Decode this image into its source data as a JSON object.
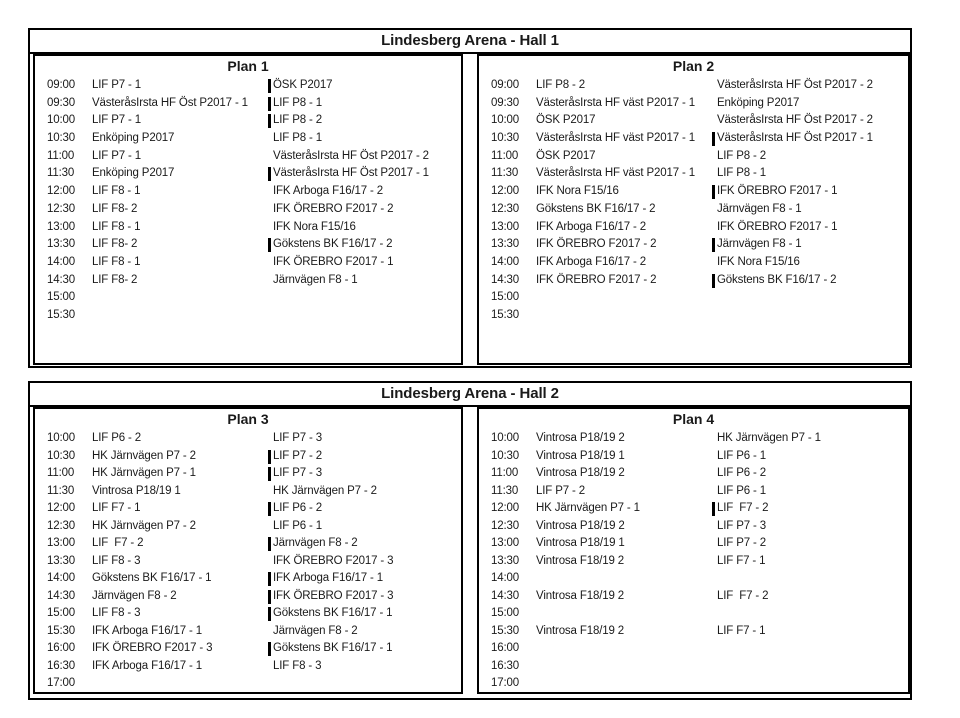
{
  "halls": [
    {
      "title": "Lindesberg Arena - Hall 1",
      "plans": [
        {
          "name": "Plan 1",
          "rows": [
            {
              "time": "09:00",
              "team1": "LIF P7 - 1",
              "team2": "ÖSK P2017",
              "bar": true
            },
            {
              "time": "09:30",
              "team1": "VästeråsIrsta HF Öst P2017 - 1",
              "team2": "LIF P8 - 1",
              "bar": true
            },
            {
              "time": "10:00",
              "team1": "LIF P7 - 1",
              "team2": "LIF P8 - 2",
              "bar": true
            },
            {
              "time": "10:30",
              "team1": "Enköping P2017",
              "team2": "LIF P8 - 1",
              "bar": false
            },
            {
              "time": "11:00",
              "team1": "LIF P7 - 1",
              "team2": "VästeråsIrsta HF Öst P2017 - 2",
              "bar": false
            },
            {
              "time": "11:30",
              "team1": "Enköping P2017",
              "team2": "VästeråsIrsta HF Öst P2017 - 1",
              "bar": true
            },
            {
              "time": "12:00",
              "team1": "LIF F8 - 1",
              "team2": "IFK Arboga F16/17 - 2",
              "bar": false
            },
            {
              "time": "12:30",
              "team1": "LIF F8- 2",
              "team2": "IFK ÖREBRO F2017 - 2",
              "bar": false
            },
            {
              "time": "13:00",
              "team1": "LIF F8 - 1",
              "team2": "IFK Nora F15/16",
              "bar": false
            },
            {
              "time": "13:30",
              "team1": "LIF F8- 2",
              "team2": "Gökstens BK F16/17 - 2",
              "bar": true
            },
            {
              "time": "14:00",
              "team1": "LIF F8 - 1",
              "team2": "IFK ÖREBRO F2017 - 1",
              "bar": false
            },
            {
              "time": "14:30",
              "team1": "LIF F8- 2",
              "team2": "Järnvägen F8 - 1",
              "bar": false
            },
            {
              "time": "15:00",
              "team1": "",
              "team2": "",
              "bar": false
            },
            {
              "time": "15:30",
              "team1": "",
              "team2": "",
              "bar": false
            }
          ]
        },
        {
          "name": "Plan 2",
          "rows": [
            {
              "time": "09:00",
              "team1": "LIF P8 - 2",
              "team2": "VästeråsIrsta HF Öst P2017 - 2",
              "bar": false
            },
            {
              "time": "09:30",
              "team1": "VästeråsIrsta HF väst P2017 - 1",
              "team2": "Enköping P2017",
              "bar": false
            },
            {
              "time": "10:00",
              "team1": "ÖSK P2017",
              "team2": "VästeråsIrsta HF Öst P2017 - 2",
              "bar": false
            },
            {
              "time": "10:30",
              "team1": "VästeråsIrsta HF väst P2017 - 1",
              "team2": "VästeråsIrsta HF Öst P2017 - 1",
              "bar": true
            },
            {
              "time": "11:00",
              "team1": "ÖSK P2017",
              "team2": "LIF P8 - 2",
              "bar": false
            },
            {
              "time": "11:30",
              "team1": "VästeråsIrsta HF väst P2017 - 1",
              "team2": "LIF P8 - 1",
              "bar": false
            },
            {
              "time": "12:00",
              "team1": "IFK Nora F15/16",
              "team2": "IFK ÖREBRO F2017 - 1",
              "bar": true
            },
            {
              "time": "12:30",
              "team1": "Gökstens BK F16/17 - 2",
              "team2": "Järnvägen F8 - 1",
              "bar": false
            },
            {
              "time": "13:00",
              "team1": "IFK Arboga F16/17 - 2",
              "team2": "IFK ÖREBRO F2017 - 1",
              "bar": false
            },
            {
              "time": "13:30",
              "team1": "IFK ÖREBRO F2017 - 2",
              "team2": "Järnvägen F8 - 1",
              "bar": true
            },
            {
              "time": "14:00",
              "team1": "IFK Arboga F16/17 - 2",
              "team2": "IFK Nora F15/16",
              "bar": false
            },
            {
              "time": "14:30",
              "team1": "IFK ÖREBRO F2017 - 2",
              "team2": "Gökstens BK F16/17 - 2",
              "bar": true
            },
            {
              "time": "15:00",
              "team1": "",
              "team2": "",
              "bar": false
            },
            {
              "time": "15:30",
              "team1": "",
              "team2": "",
              "bar": false
            }
          ]
        }
      ]
    },
    {
      "title": "Lindesberg Arena - Hall 2",
      "plans": [
        {
          "name": "Plan 3",
          "rows": [
            {
              "time": "10:00",
              "team1": "LIF P6 - 2",
              "team2": "LIF P7 - 3",
              "bar": false
            },
            {
              "time": "10:30",
              "team1": "HK Järnvägen P7 - 2",
              "team2": "LIF P7 - 2",
              "bar": true
            },
            {
              "time": "11:00",
              "team1": "HK Järnvägen P7 - 1",
              "team2": "LIF P7 - 3",
              "bar": true
            },
            {
              "time": "11:30",
              "team1": "Vintrosa P18/19 1",
              "team2": "HK Järnvägen P7 - 2",
              "bar": false
            },
            {
              "time": "12:00",
              "team1": "LIF F7 - 1",
              "team2": "LIF P6 - 2",
              "bar": true
            },
            {
              "time": "12:30",
              "team1": "HK Järnvägen P7 - 2",
              "team2": "LIF P6 - 1",
              "bar": false
            },
            {
              "time": "13:00",
              "team1": "LIF  F7 - 2",
              "team2": "Järnvägen F8 - 2",
              "bar": true
            },
            {
              "time": "13:30",
              "team1": "LIF F8 - 3",
              "team2": "IFK ÖREBRO F2017 - 3",
              "bar": false
            },
            {
              "time": "14:00",
              "team1": "Gökstens BK F16/17 - 1",
              "team2": "IFK Arboga F16/17 - 1",
              "bar": true
            },
            {
              "time": "14:30",
              "team1": "Järnvägen F8 - 2",
              "team2": "IFK ÖREBRO F2017 - 3",
              "bar": true
            },
            {
              "time": "15:00",
              "team1": "LIF F8 - 3",
              "team2": "Gökstens BK F16/17 - 1",
              "bar": true
            },
            {
              "time": "15:30",
              "team1": "IFK Arboga F16/17 - 1",
              "team2": "Järnvägen F8 - 2",
              "bar": false
            },
            {
              "time": "16:00",
              "team1": "IFK ÖREBRO F2017 - 3",
              "team2": "Gökstens BK F16/17 - 1",
              "bar": true
            },
            {
              "time": "16:30",
              "team1": "IFK Arboga F16/17 - 1",
              "team2": "LIF F8 - 3",
              "bar": false
            },
            {
              "time": "17:00",
              "team1": "",
              "team2": "",
              "bar": false
            }
          ]
        },
        {
          "name": "Plan 4",
          "rows": [
            {
              "time": "10:00",
              "team1": "Vintrosa P18/19 2",
              "team2": "HK Järnvägen P7 - 1",
              "bar": false
            },
            {
              "time": "10:30",
              "team1": "Vintrosa P18/19 1",
              "team2": "LIF P6 - 1",
              "bar": false
            },
            {
              "time": "11:00",
              "team1": "Vintrosa P18/19 2",
              "team2": "LIF P6 - 2",
              "bar": false
            },
            {
              "time": "11:30",
              "team1": "LIF P7 - 2",
              "team2": "LIF P6 - 1",
              "bar": false
            },
            {
              "time": "12:00",
              "team1": "HK Järnvägen P7 - 1",
              "team2": "LIF  F7 - 2",
              "bar": true
            },
            {
              "time": "12:30",
              "team1": "Vintrosa P18/19 2",
              "team2": "LIF P7 - 3",
              "bar": false
            },
            {
              "time": "13:00",
              "team1": "Vintrosa P18/19 1",
              "team2": "LIF P7 - 2",
              "bar": false
            },
            {
              "time": "13:30",
              "team1": "Vintrosa F18/19 2",
              "team2": "LIF F7 - 1",
              "bar": false
            },
            {
              "time": "14:00",
              "team1": "",
              "team2": "",
              "bar": false
            },
            {
              "time": "14:30",
              "team1": "Vintrosa F18/19 2",
              "team2": "LIF  F7 - 2",
              "bar": false
            },
            {
              "time": "15:00",
              "team1": "",
              "team2": "",
              "bar": false
            },
            {
              "time": "15:30",
              "team1": "Vintrosa F18/19 2",
              "team2": "LIF F7 - 1",
              "bar": false
            },
            {
              "time": "16:00",
              "team1": "",
              "team2": "",
              "bar": false
            },
            {
              "time": "16:30",
              "team1": "",
              "team2": "",
              "bar": false
            },
            {
              "time": "17:00",
              "team1": "",
              "team2": "",
              "bar": false
            }
          ]
        }
      ]
    }
  ]
}
